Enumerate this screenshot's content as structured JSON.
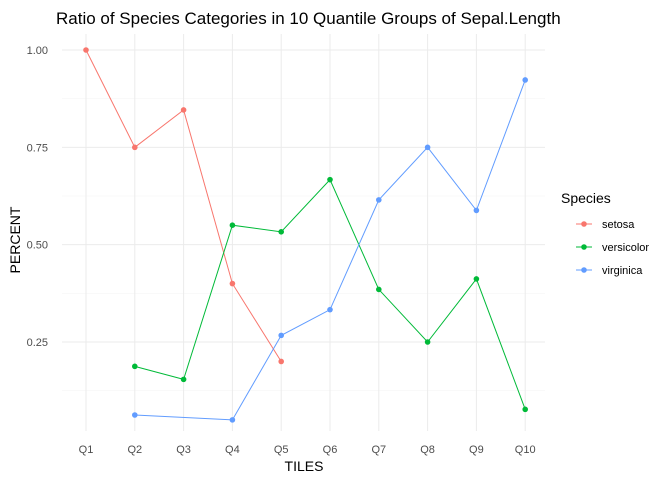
{
  "chart_data": {
    "type": "line",
    "title": "Ratio of Species Categories in 10 Quantile Groups of Sepal.Length",
    "xlabel": "TILES",
    "ylabel": "PERCENT",
    "categories": [
      "Q1",
      "Q2",
      "Q3",
      "Q4",
      "Q5",
      "Q6",
      "Q7",
      "Q8",
      "Q9",
      "Q10"
    ],
    "yticks": [
      0.25,
      0.5,
      0.75,
      1.0
    ],
    "ytick_labels": [
      "0.25",
      "0.50",
      "0.75",
      "1.00"
    ],
    "ylim": [
      0.03,
      1.04
    ],
    "grid": true,
    "legend": {
      "title": "Species",
      "placement": "right"
    },
    "series": [
      {
        "name": "setosa",
        "color": "#F8766D",
        "values": [
          1.0,
          0.75,
          0.846,
          0.4,
          0.2,
          null,
          null,
          null,
          null,
          null
        ]
      },
      {
        "name": "versicolor",
        "color": "#00BA38",
        "values": [
          null,
          0.1875,
          0.154,
          0.55,
          0.533,
          0.667,
          0.385,
          0.25,
          0.412,
          0.077
        ]
      },
      {
        "name": "virginica",
        "color": "#619CFF",
        "values": [
          null,
          0.0625,
          null,
          0.05,
          0.267,
          0.333,
          0.615,
          0.75,
          0.588,
          0.923
        ]
      }
    ]
  }
}
